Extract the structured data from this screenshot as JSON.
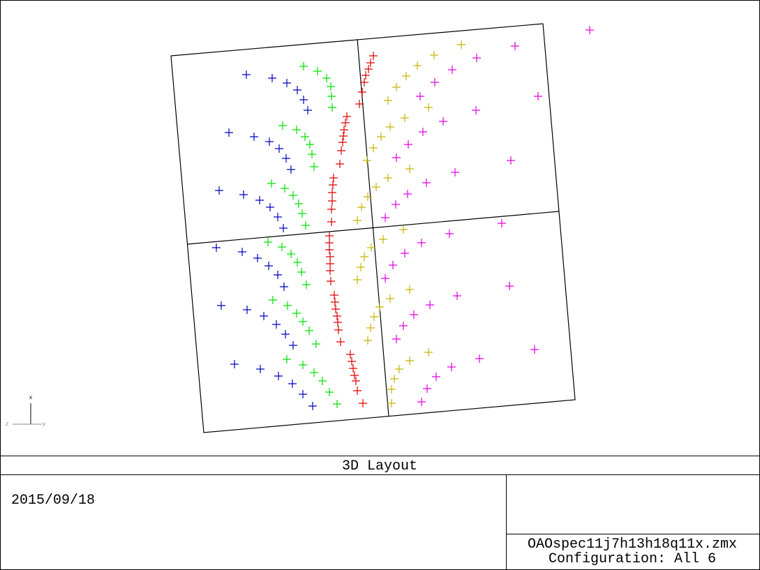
{
  "plot": {
    "triad": {
      "x": "x",
      "z": "z",
      "y": "y"
    }
  },
  "footer": {
    "title": "3D Layout",
    "date": "2015/09/18",
    "file": "OAOspec11j7h13h18q11x.zmx",
    "configuration": "Configuration: All 6"
  }
}
